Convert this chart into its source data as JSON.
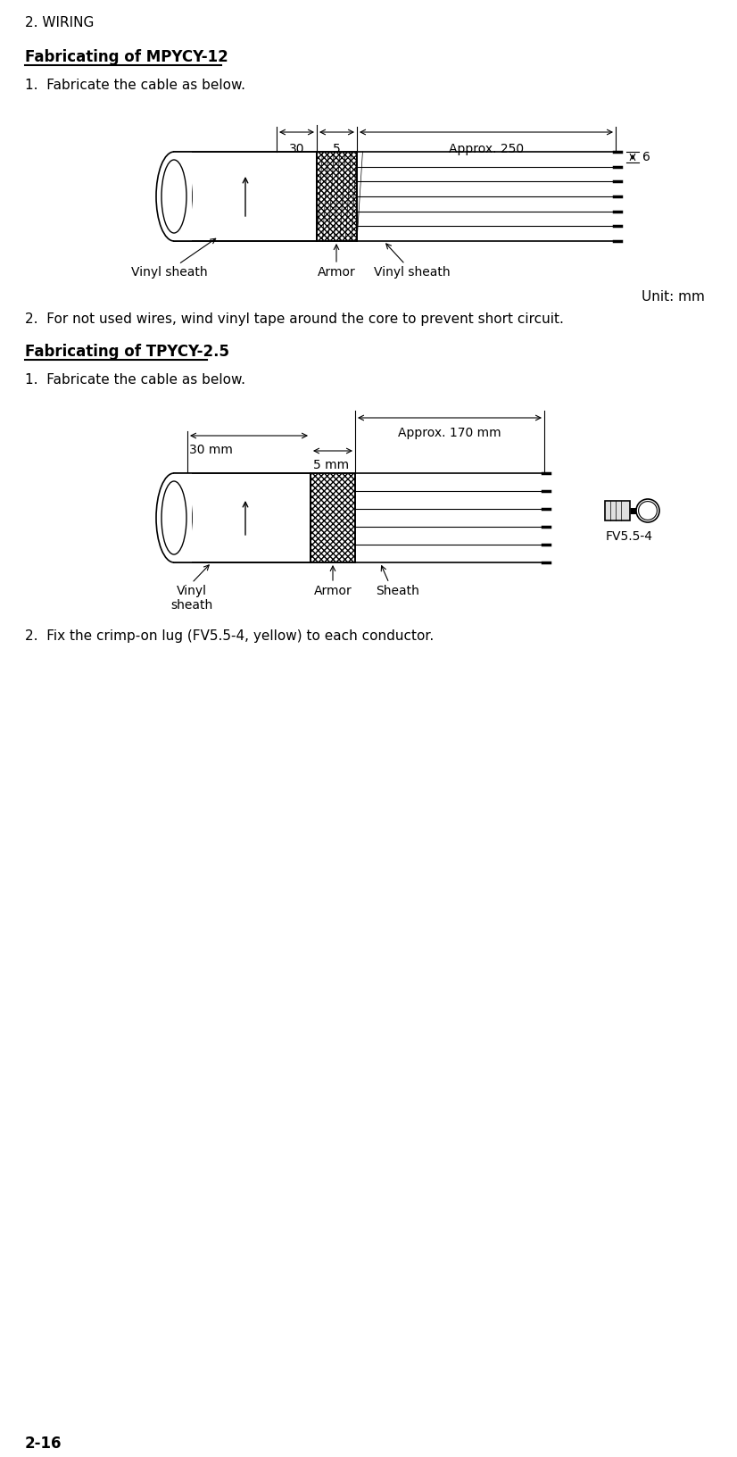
{
  "page_header": "2. WIRING",
  "page_footer": "2-16",
  "section1_title": "Fabricating of MPYCY-12",
  "section1_item1": "1.  Fabricate the cable as below.",
  "section1_item2": "2.  For not used wires, wind vinyl tape around the core to prevent short circuit.",
  "unit_label": "Unit: mm",
  "dim1_label": "30",
  "dim2_label": "5",
  "dim3_label": "Approx. 250",
  "dim4_label": "6",
  "label_vinyl_sheath1": "Vinyl sheath",
  "label_armor1": "Armor",
  "label_vinyl_sheath2": "Vinyl sheath",
  "section2_title": "Fabricating of TPYCY-2.5",
  "section2_item1": "1.  Fabricate the cable as below.",
  "section2_item2": "2.  Fix the crimp-on lug (FV5.5-4, yellow) to each conductor.",
  "dim5_label": "Approx. 170 mm",
  "dim6_label": "30 mm",
  "dim7_label": "5 mm",
  "label_fv": "FV5.5-4",
  "label_vinyl_sheath3": "Vinyl\nsheath",
  "label_armor2": "Armor",
  "label_sheath": "Sheath",
  "bg_color": "#ffffff",
  "line_color": "#000000",
  "text_color": "#000000"
}
